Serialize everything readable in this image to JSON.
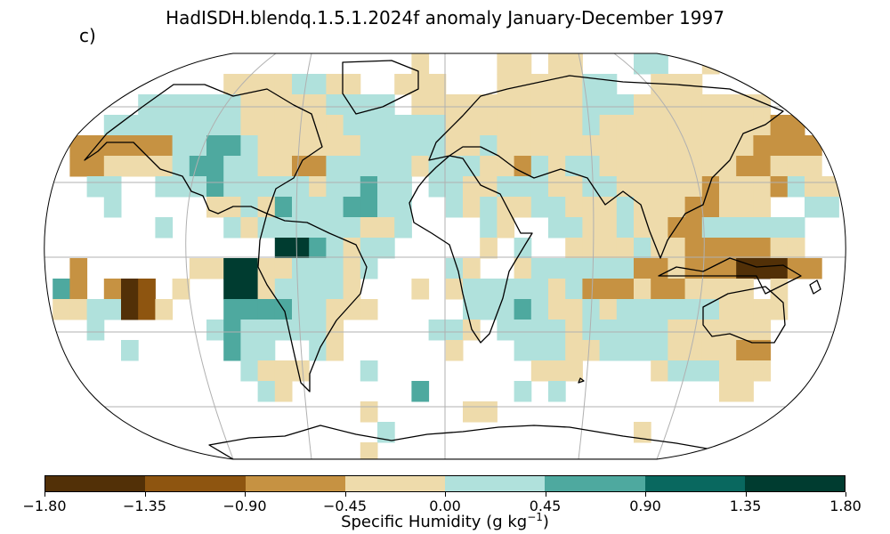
{
  "title": "HadISDH.blendq.1.5.1.2024f anomaly January-December 1997",
  "panel_label": "c)",
  "colorbar": {
    "label": "Specific Humidity (g kg",
    "label_superscript": "−1",
    "label_close": ")",
    "ticks": [
      "−1.80",
      "−1.35",
      "−0.90",
      "−0.45",
      "0.00",
      "0.45",
      "0.90",
      "1.35",
      "1.80"
    ],
    "colors": [
      "#523007",
      "#8e5510",
      "#c69242",
      "#eedbab",
      "#b0e1dc",
      "#4ea99f",
      "#09685f",
      "#003c30"
    ]
  },
  "map": {
    "projection": "Robinson",
    "variable": "specific humidity anomaly",
    "period": "January-December 1997",
    "graticule": true,
    "coastlines": true
  }
}
